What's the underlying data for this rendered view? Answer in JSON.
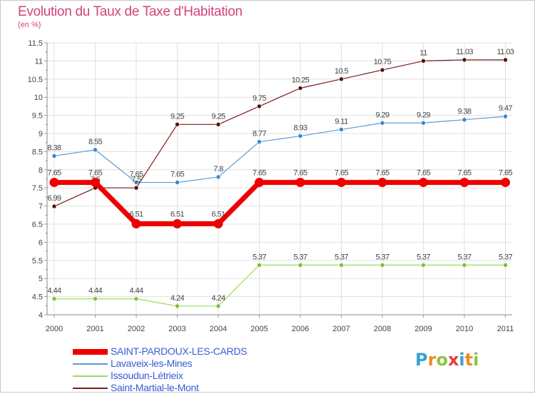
{
  "title": "Evolution du Taux de Taxe d'Habitation",
  "subtitle": "(en %)",
  "logo": {
    "text": "Proxiti",
    "letters": [
      {
        "char": "P",
        "color": "#3aa0d8"
      },
      {
        "char": "r",
        "color": "#f08c1e"
      },
      {
        "char": "o",
        "color": "#8cc63e"
      },
      {
        "char": "x",
        "color": "#e63c3c"
      },
      {
        "char": "i",
        "color": "#3aa0d8"
      },
      {
        "char": "t",
        "color": "#f08c1e"
      },
      {
        "char": "i",
        "color": "#8cc63e"
      }
    ]
  },
  "chart_data": {
    "type": "line",
    "title": "Evolution du Taux de Taxe d'Habitation",
    "ylabel": "(en %)",
    "xlabel": "",
    "x": [
      "2000",
      "2001",
      "2002",
      "2003",
      "2004",
      "2005",
      "2006",
      "2007",
      "2008",
      "2009",
      "2010",
      "2011"
    ],
    "ylim": [
      4,
      11.5
    ],
    "yticks": [
      "4",
      "4.5",
      "5",
      "5.5",
      "6",
      "6.5",
      "7",
      "7.5",
      "8",
      "8.5",
      "9",
      "9.5",
      "10",
      "10.5",
      "11",
      "11.5"
    ],
    "grid": true,
    "legend_position": "bottom-left",
    "series": [
      {
        "name": "SAINT-PARDOUX-LES-CARDS",
        "color": "#ee0000",
        "emphasis": true,
        "values": [
          7.65,
          7.65,
          6.51,
          6.51,
          6.51,
          7.65,
          7.65,
          7.65,
          7.65,
          7.65,
          7.65,
          7.65
        ],
        "labels": [
          "7.65",
          "7.65",
          "6.51",
          "6.51",
          "6.51",
          "7.65",
          "7.65",
          "7.65",
          "7.65",
          "7.65",
          "7.65",
          "7.65"
        ]
      },
      {
        "name": "Lavaveix-les-Mines",
        "color": "#5b9cd6",
        "emphasis": false,
        "values": [
          8.38,
          8.55,
          7.65,
          7.65,
          7.8,
          8.77,
          8.93,
          9.11,
          9.29,
          9.29,
          9.38,
          9.47
        ],
        "labels": [
          "8.38",
          "8.55",
          "7.65",
          "7.65",
          "7.8",
          "8.77",
          "8.93",
          "9.11",
          "9.29",
          "9.29",
          "9.38",
          "9.47"
        ]
      },
      {
        "name": "Issoudun-Létrieix",
        "color": "#9ed85c",
        "emphasis": false,
        "values": [
          4.44,
          4.44,
          4.44,
          4.24,
          4.24,
          5.37,
          5.37,
          5.37,
          5.37,
          5.37,
          5.37,
          5.37
        ],
        "labels": [
          "4.44",
          "4.44",
          "4.44",
          "4.24",
          "4.24",
          "5.37",
          "5.37",
          "5.37",
          "5.37",
          "5.37",
          "5.37",
          "5.37"
        ]
      },
      {
        "name": "Saint-Martial-le-Mont",
        "color": "#7a1c1c",
        "emphasis": false,
        "values": [
          6.99,
          7.5,
          7.5,
          9.25,
          9.25,
          9.75,
          10.25,
          10.5,
          10.75,
          11,
          11.03,
          11.03
        ],
        "labels": [
          "6.99",
          "7.5",
          "7.5",
          "9.25",
          "9.25",
          "9.75",
          "10.25",
          "10.5",
          "10.75",
          "11",
          "11.03",
          "11.03"
        ]
      }
    ]
  }
}
